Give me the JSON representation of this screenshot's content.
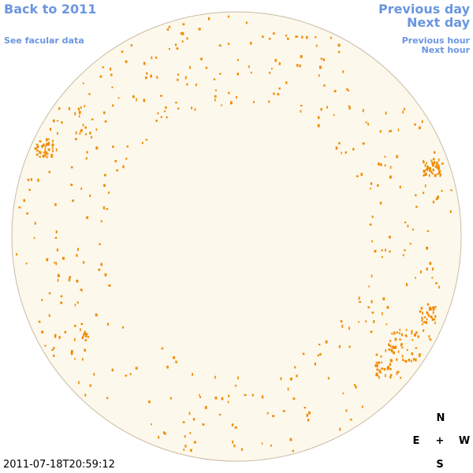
{
  "nav": {
    "back": "Back to 2011",
    "facular": "See facular data",
    "prev_day": "Previous day",
    "next_day": "Next day",
    "prev_hour": "Previous hour",
    "next_hour": "Next hour"
  },
  "timestamp": "2011-07-18T20:59:12",
  "compass": {
    "north": "N",
    "east": "E",
    "center": "+",
    "west": "W",
    "south": "S"
  }
}
